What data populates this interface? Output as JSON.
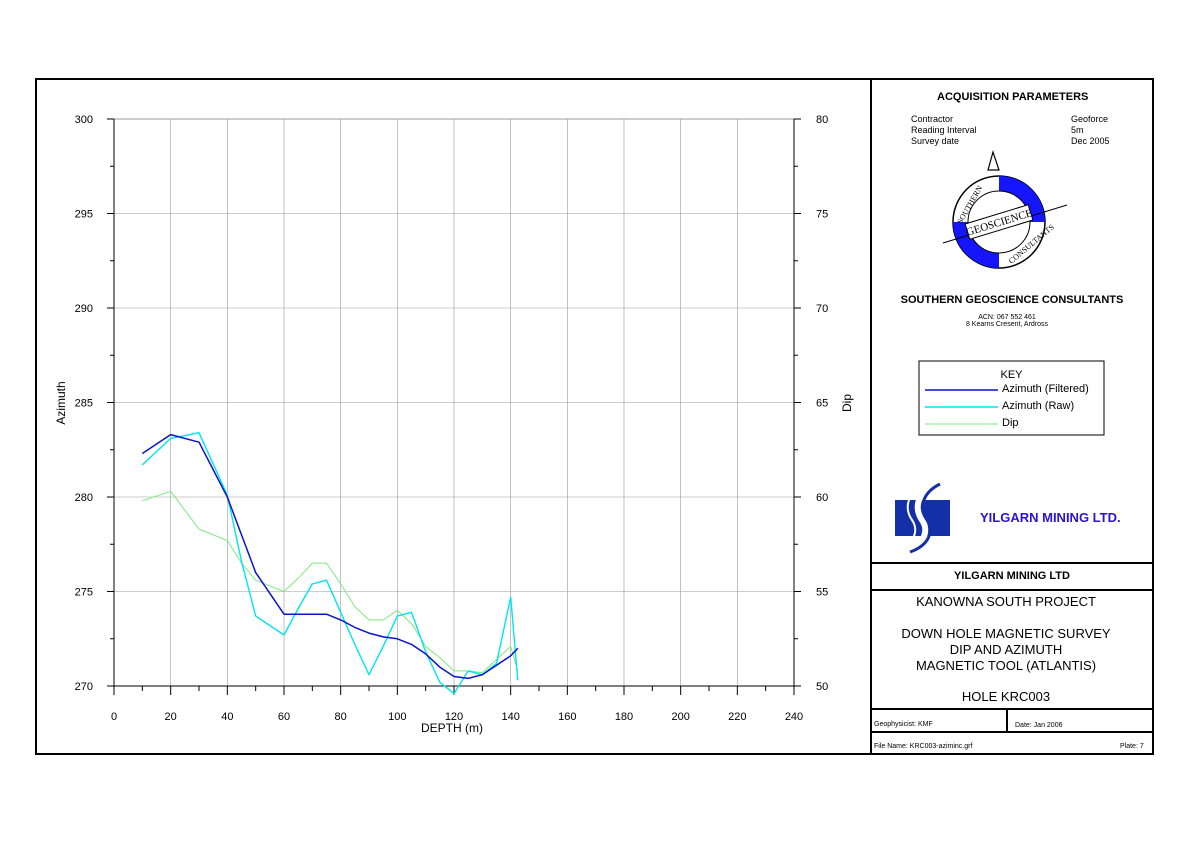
{
  "acquisition": {
    "heading": "ACQUISITION PARAMETERS",
    "rows": [
      {
        "label": "Contractor",
        "value": "Geoforce"
      },
      {
        "label": "Reading Interval",
        "value": "5m"
      },
      {
        "label": "Survey date",
        "value": "Dec 2005"
      }
    ]
  },
  "company": {
    "name": "SOUTHERN GEOSCIENCE CONSULTANTS",
    "acn": "ACN: 067 552 461",
    "address": "8 Kearns Cresent, Ardross",
    "logo_text_1": "SOUTHERN",
    "logo_text_2": "GEOSCIENCE",
    "logo_text_3": "CONSULTANTS",
    "logo_accent_color": "#1515ff"
  },
  "key": {
    "title": "KEY",
    "items": [
      {
        "label": "Azimuth (Filtered)",
        "color": "#0a14c8"
      },
      {
        "label": "Azimuth (Raw)",
        "color": "#00e5f0"
      },
      {
        "label": "Dip",
        "color": "#7fe87f"
      }
    ]
  },
  "client": {
    "name": "YILGARN MINING LTD.",
    "name_color": "#2a14d2",
    "logo_color": "#1330a8"
  },
  "project": {
    "client_heading": "YILGARN MINING LTD",
    "project_name": "KANOWNA SOUTH PROJECT",
    "survey_line1": "DOWN HOLE MAGNETIC SURVEY",
    "survey_line2": "DIP AND AZIMUTH",
    "survey_line3": "MAGNETIC TOOL (ATLANTIS)",
    "hole": "HOLE KRC003"
  },
  "footer": {
    "geophysicist": "Geophysicist: KMF",
    "date": "Date: Jan 2006",
    "file_name": "File Name: KRC003-aziminc.grf",
    "plate": "Plate: 7"
  },
  "chart_data": {
    "type": "line",
    "xlabel": "DEPTH (m)",
    "ylabel": "Azimuth",
    "y2label": "Dip",
    "xlim": [
      0,
      240
    ],
    "ylim": [
      270,
      300
    ],
    "y2lim": [
      50,
      80
    ],
    "x_ticks": [
      0,
      20,
      40,
      60,
      80,
      100,
      120,
      140,
      160,
      180,
      200,
      220,
      240
    ],
    "y_ticks": [
      270,
      275,
      280,
      285,
      290,
      295,
      300
    ],
    "y2_ticks": [
      50,
      55,
      60,
      65,
      70,
      75,
      80
    ],
    "grid": true,
    "legend": "right panel",
    "series": [
      {
        "name": "Azimuth (Filtered)",
        "axis": "left",
        "color": "#0a14c8",
        "x": [
          10,
          20,
          30,
          40,
          50,
          60,
          70,
          75,
          80,
          85,
          90,
          95,
          100,
          105,
          110,
          115,
          120,
          125,
          130,
          135,
          140,
          142.5
        ],
        "y": [
          282.3,
          283.3,
          282.9,
          280.0,
          276.0,
          273.8,
          273.8,
          273.8,
          273.5,
          273.1,
          272.8,
          272.6,
          272.5,
          272.2,
          271.7,
          271.0,
          270.5,
          270.4,
          270.6,
          271.1,
          271.6,
          272.0
        ]
      },
      {
        "name": "Azimuth (Raw)",
        "axis": "left",
        "color": "#00e5f0",
        "x": [
          10,
          20,
          30,
          40,
          45,
          50,
          55,
          60,
          65,
          70,
          75,
          80,
          85,
          90,
          95,
          100,
          105,
          110,
          115,
          120,
          125,
          130,
          135,
          140,
          142.5
        ],
        "y": [
          281.7,
          283.1,
          283.4,
          280.1,
          276.6,
          273.7,
          273.2,
          272.7,
          274.1,
          275.4,
          275.6,
          273.9,
          272.2,
          270.6,
          272.1,
          273.7,
          273.9,
          271.8,
          270.2,
          269.6,
          270.8,
          270.6,
          271.2,
          274.7,
          270.3
        ]
      },
      {
        "name": "Dip",
        "axis": "right",
        "color": "#7fe87f",
        "x": [
          10,
          20,
          30,
          40,
          45,
          50,
          55,
          60,
          65,
          70,
          75,
          80,
          85,
          90,
          95,
          100,
          105,
          110,
          115,
          120,
          125,
          130,
          135,
          140,
          142.5
        ],
        "y": [
          59.8,
          60.3,
          58.3,
          57.7,
          56.5,
          55.6,
          55.3,
          55.0,
          55.7,
          56.5,
          56.5,
          55.4,
          54.2,
          53.5,
          53.5,
          54.0,
          53.3,
          52.1,
          51.5,
          50.8,
          50.8,
          50.7,
          51.4,
          52.1,
          50.8
        ]
      }
    ]
  }
}
